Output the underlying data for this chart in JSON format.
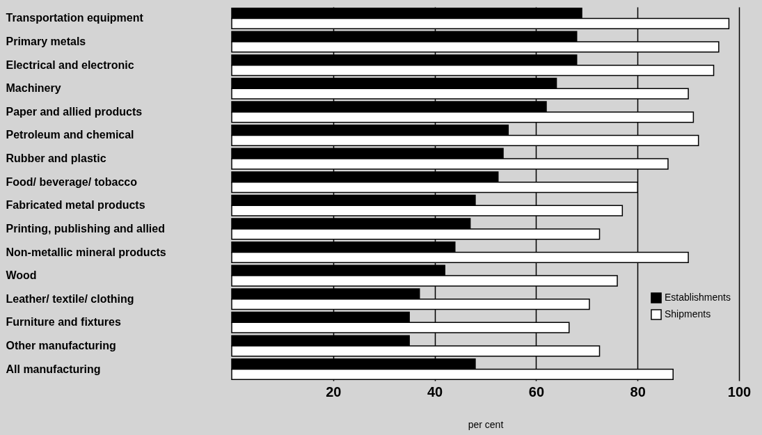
{
  "chart_data": {
    "type": "bar",
    "orientation": "horizontal",
    "xlabel": "per cent",
    "categories": [
      "Transportation equipment",
      "Primary metals",
      "Electrical and electronic",
      "Machinery",
      "Paper and allied products",
      "Petroleum and chemical",
      "Rubber and plastic",
      "Food/ beverage/ tobacco",
      "Fabricated metal products",
      "Printing, publishing and allied",
      "Non-metallic mineral products",
      "Wood",
      "Leather/ textile/ clothing",
      "Furniture and fixtures",
      "Other manufacturing",
      "All manufacturing"
    ],
    "series": [
      {
        "name": "Establishments",
        "color": "#000000",
        "values": [
          69,
          68,
          68,
          64,
          62,
          54.5,
          53.5,
          52.5,
          48,
          47,
          44,
          42,
          37,
          35,
          35,
          48
        ]
      },
      {
        "name": "Shipments",
        "color": "#ffffff",
        "values": [
          98,
          96,
          95,
          90,
          91,
          92,
          86,
          80,
          77,
          72.5,
          90,
          76,
          70.5,
          66.5,
          72.5,
          87
        ]
      }
    ],
    "xlim": [
      0,
      100
    ],
    "xticks": [
      20,
      40,
      60,
      80,
      100
    ],
    "grid": "x",
    "legend": "bottom right"
  }
}
